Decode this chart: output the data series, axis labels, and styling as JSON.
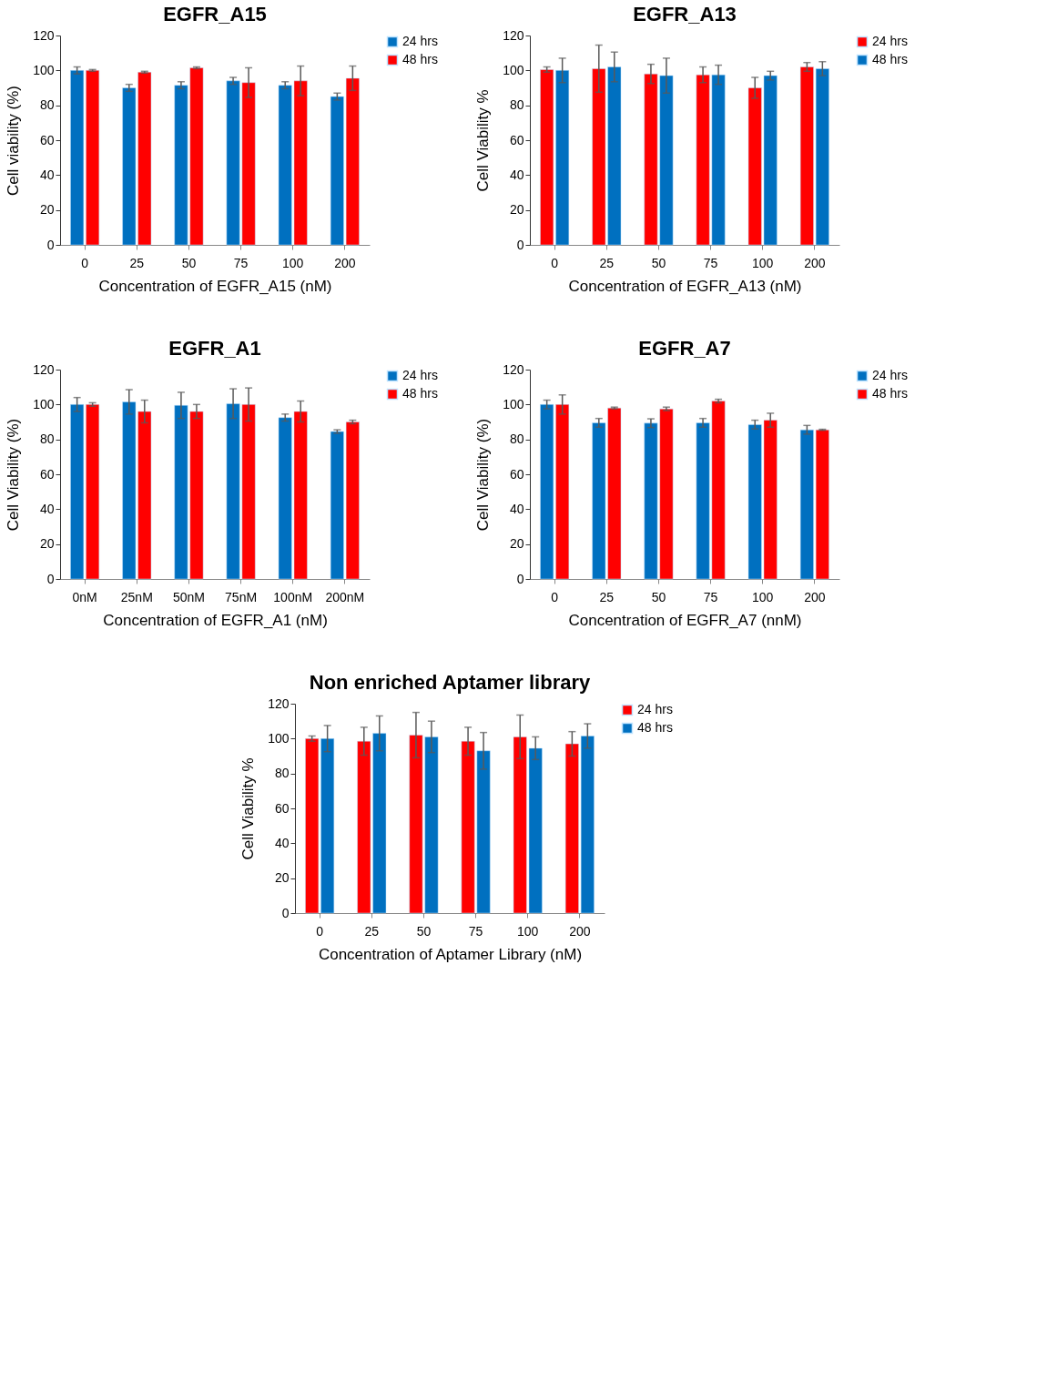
{
  "chart_data": [
    {
      "type": "bar",
      "title": "EGFR_A15",
      "xlabel": "Concentration of EGFR_A15 (nM)",
      "ylabel": "Cell viability (%)",
      "categories": [
        "0",
        "25",
        "50",
        "75",
        "100",
        "200"
      ],
      "ylim": [
        0,
        120
      ],
      "yticks": [
        0,
        20,
        40,
        60,
        80,
        100,
        120
      ],
      "legend": "top right",
      "series": [
        {
          "name": "24 hrs",
          "color": "#0070c0",
          "values": [
            100,
            90,
            91.5,
            94,
            91.5,
            85
          ],
          "errors": [
            2,
            2,
            2,
            2,
            2,
            2
          ]
        },
        {
          "name": "48 hrs",
          "color": "#ff0000",
          "values": [
            100,
            99,
            101.5,
            93,
            94,
            95.5
          ],
          "errors": [
            0.5,
            0.5,
            0.5,
            8.5,
            8.5,
            7
          ]
        }
      ]
    },
    {
      "type": "bar",
      "title": "EGFR_A13",
      "xlabel": "Concentration of EGFR_A13 (nM)",
      "ylabel": "Cell Viability %",
      "categories": [
        "0",
        "25",
        "50",
        "75",
        "100",
        "200"
      ],
      "ylim": [
        0,
        120
      ],
      "yticks": [
        0,
        20,
        40,
        60,
        80,
        100,
        120
      ],
      "legend": "top right",
      "series": [
        {
          "name": "24 hrs",
          "color": "#ff0000",
          "values": [
            100.5,
            101,
            98,
            97.5,
            90,
            102
          ],
          "errors": [
            1.5,
            13.5,
            5.5,
            4.5,
            6,
            2.5
          ]
        },
        {
          "name": "48 hrs",
          "color": "#0070c0",
          "values": [
            100,
            102,
            97,
            97.5,
            97,
            101
          ],
          "errors": [
            7,
            8.5,
            10,
            5.5,
            2.5,
            4
          ]
        }
      ]
    },
    {
      "type": "bar",
      "title": "EGFR_A1",
      "xlabel": "Concentration of EGFR_A1 (nM)",
      "ylabel": "Cell Viability (%)",
      "categories": [
        "0nM",
        "25nM",
        "50nM",
        "75nM",
        "100nM",
        "200nM"
      ],
      "ylim": [
        0,
        120
      ],
      "yticks": [
        0,
        20,
        40,
        60,
        80,
        100,
        120
      ],
      "legend": "top right",
      "series": [
        {
          "name": "24 hrs",
          "color": "#0070c0",
          "values": [
            100,
            101.5,
            99.5,
            100.5,
            92.5,
            84.5
          ],
          "errors": [
            4,
            7,
            7.5,
            8.5,
            2,
            1
          ]
        },
        {
          "name": "48 hrs",
          "color": "#ff0000",
          "values": [
            100,
            96,
            96,
            100,
            96,
            90
          ],
          "errors": [
            1,
            6.5,
            4,
            9.5,
            6,
            1
          ]
        }
      ]
    },
    {
      "type": "bar",
      "title": "EGFR_A7",
      "xlabel": "Concentration of EGFR_A7 (nnM)",
      "ylabel": "Cell Viability (%)",
      "categories": [
        "0",
        "25",
        "50",
        "75",
        "100",
        "200"
      ],
      "ylim": [
        0,
        120
      ],
      "yticks": [
        0,
        20,
        40,
        60,
        80,
        100,
        120
      ],
      "legend": "top right",
      "series": [
        {
          "name": "24 hrs",
          "color": "#0070c0",
          "values": [
            100,
            89.5,
            89.3,
            89.5,
            88.5,
            85.5
          ],
          "errors": [
            2.5,
            2.5,
            2.5,
            2.5,
            2.5,
            2.5
          ]
        },
        {
          "name": "48 hrs",
          "color": "#ff0000",
          "values": [
            100,
            98,
            97.5,
            102,
            91,
            85.5
          ],
          "errors": [
            5.5,
            0.5,
            1,
            1,
            4,
            0.3
          ]
        }
      ]
    },
    {
      "type": "bar",
      "title": "Non enriched Aptamer library",
      "xlabel": "Concentration of Aptamer Library (nM)",
      "ylabel": "Cell Viability %",
      "categories": [
        "0",
        "25",
        "50",
        "75",
        "100",
        "200"
      ],
      "ylim": [
        0,
        120
      ],
      "yticks": [
        0,
        20,
        40,
        60,
        80,
        100,
        120
      ],
      "legend": "top right",
      "series": [
        {
          "name": "24 hrs",
          "color": "#ff0000",
          "values": [
            100,
            98.5,
            102,
            98.5,
            101,
            97
          ],
          "errors": [
            1.5,
            8,
            13,
            8,
            12.5,
            7
          ]
        },
        {
          "name": "48 hrs",
          "color": "#0070c0",
          "values": [
            100,
            103,
            101,
            93,
            94.5,
            101.5
          ],
          "errors": [
            7.5,
            10,
            9,
            10.5,
            6.5,
            7
          ]
        }
      ]
    }
  ]
}
